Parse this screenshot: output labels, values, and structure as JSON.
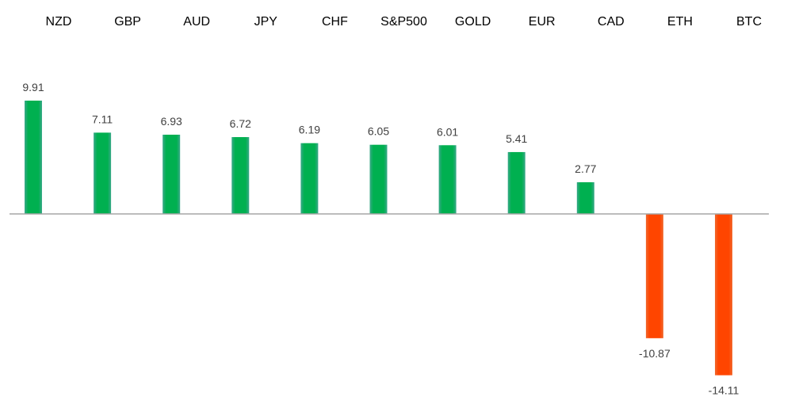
{
  "chart_data": {
    "type": "bar",
    "categories": [
      "NZD",
      "GBP",
      "AUD",
      "JPY",
      "CHF",
      "S&P500",
      "GOLD",
      "EUR",
      "CAD",
      "ETH",
      "BTC"
    ],
    "values": [
      9.91,
      7.11,
      6.93,
      6.72,
      6.19,
      6.05,
      6.01,
      5.41,
      2.77,
      -10.87,
      -14.11
    ],
    "data_labels": [
      "9.91",
      "7.11",
      "6.93",
      "6.72",
      "6.19",
      "6.05",
      "6.01",
      "5.41",
      "2.77",
      "-10.87",
      "-14.11"
    ],
    "title": "",
    "xlabel": "",
    "ylabel": "",
    "ylim": [
      -14.11,
      9.91
    ],
    "category_labels_position": "top",
    "grid": false,
    "legend": "none",
    "colors": {
      "positive": "#00B050",
      "negative": "#FF4500",
      "axis": "#A6A6A6"
    }
  }
}
